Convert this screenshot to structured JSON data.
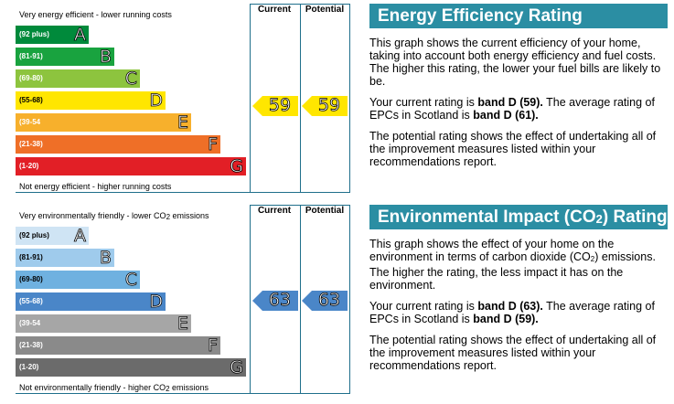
{
  "energy_chart": {
    "col_current": "Current",
    "col_potential": "Potential",
    "top_caption": "Very energy efficient - lower running costs",
    "bottom_caption": "Not energy efficient - higher running costs",
    "bands": [
      {
        "range": "(92 plus)",
        "letter": "A",
        "color": "#008a3b"
      },
      {
        "range": "(81-91)",
        "letter": "B",
        "color": "#19a33f"
      },
      {
        "range": "(69-80)",
        "letter": "C",
        "color": "#8dc43e"
      },
      {
        "range": "(55-68)",
        "letter": "D",
        "color": "#ffe600"
      },
      {
        "range": "(39-54",
        "letter": "E",
        "color": "#f7b02c"
      },
      {
        "range": "(21-38)",
        "letter": "F",
        "color": "#ef6f27"
      },
      {
        "range": "(1-20)",
        "letter": "G",
        "color": "#e21f26"
      }
    ],
    "current_value": "59",
    "potential_value": "59",
    "arrow_color": "#ffe600"
  },
  "env_chart": {
    "col_current": "Current",
    "col_potential": "Potential",
    "top_caption_a": "Very environmentally friendly - lower CO",
    "top_caption_sub": "2",
    "top_caption_b": " emissions",
    "bottom_caption_a": "Not environmentally friendly - higher CO",
    "bottom_caption_sub": "2",
    "bottom_caption_b": " emissions",
    "bands": [
      {
        "range": "(92 plus)",
        "letter": "A",
        "color": "#cfe4f4"
      },
      {
        "range": "(81-91)",
        "letter": "B",
        "color": "#9fcbec"
      },
      {
        "range": "(69-80)",
        "letter": "C",
        "color": "#6fb1e0"
      },
      {
        "range": "(55-68)",
        "letter": "D",
        "color": "#4a86c8"
      },
      {
        "range": "(39-54",
        "letter": "E",
        "color": "#a6a6a6"
      },
      {
        "range": "(21-38)",
        "letter": "F",
        "color": "#8a8a8a"
      },
      {
        "range": "(1-20)",
        "letter": "G",
        "color": "#6b6b6b"
      }
    ],
    "current_value": "63",
    "potential_value": "63",
    "arrow_color": "#4a86c8"
  },
  "energy_panel": {
    "title": "Energy Efficiency Rating",
    "p1": "This graph shows the current efficiency of your home, taking into account both energy efficiency and fuel costs. The higher this rating, the lower your fuel bills are likely to be.",
    "p2_a": "Your current rating is ",
    "p2_b": "band D (59).",
    "p2_c": " The average rating of EPCs in Scotland is ",
    "p2_d": "band D (61).",
    "p3": "The potential rating shows the effect of undertaking all of the improvement measures listed within your recommendations report."
  },
  "env_panel": {
    "title_a": "Environmental Impact (CO",
    "title_sub": "2",
    "title_b": ") Rating",
    "p1_a": "This graph shows the effect of your home on the environment in terms of carbon dioxide (CO",
    "p1_sub": "2",
    "p1_b": ") emissions. The higher the rating, the less impact it has on the environment.",
    "p2_a": "Your current rating is ",
    "p2_b": "band D (63).",
    "p2_c": " The average rating of EPCs in Scotland is ",
    "p2_d": "band D (59).",
    "p3": "The potential rating shows the effect of undertaking all of the improvement measures listed within your recommendations report."
  }
}
